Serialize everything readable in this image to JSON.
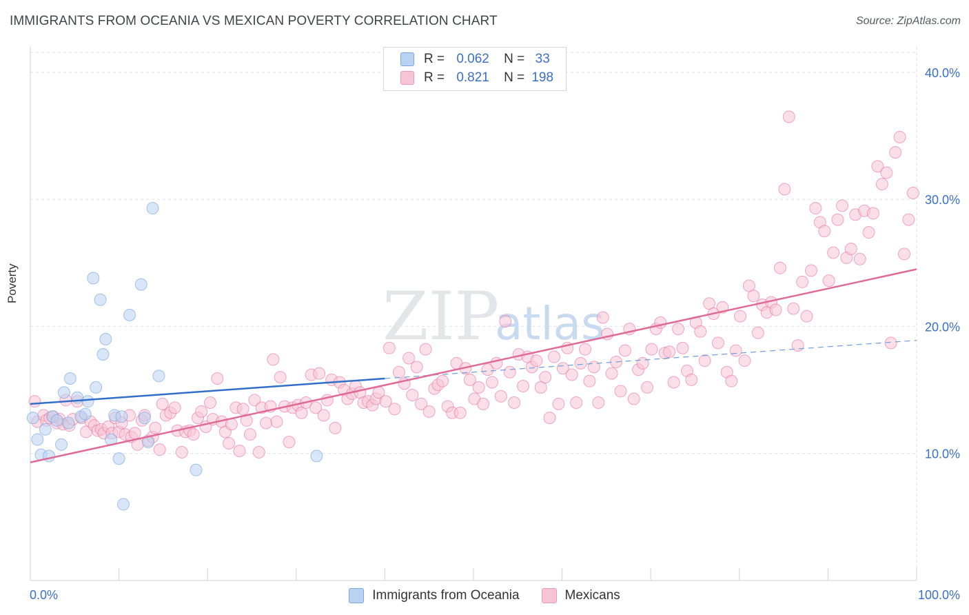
{
  "header": {
    "title": "IMMIGRANTS FROM OCEANIA VS MEXICAN POVERTY CORRELATION CHART",
    "source": "Source: ZipAtlas.com"
  },
  "legend_top": {
    "rows": [
      {
        "r_label": "R =",
        "r_value": "0.062",
        "n_label": "N =",
        "n_value": "33",
        "color": "#a8c8f0"
      },
      {
        "r_label": "R =",
        "r_value": "0.821",
        "n_label": "N =",
        "n_value": "198",
        "color": "#f7b6cb"
      }
    ]
  },
  "chart_data": {
    "type": "scatter",
    "ylabel": "Poverty",
    "xlim": [
      0,
      100
    ],
    "ylim": [
      0,
      42
    ],
    "x_tick_labels": [
      "0.0%",
      "100.0%"
    ],
    "y_ticks": [
      10,
      20,
      30,
      40
    ],
    "y_tick_labels": [
      "10.0%",
      "20.0%",
      "30.0%",
      "40.0%"
    ],
    "grid": true,
    "legend_position": "bottom",
    "series": [
      {
        "name": "Immigrants from Oceania",
        "color": "#6f9fd8",
        "fill": "#b9d2f2",
        "trend": {
          "x0": 0,
          "y0": 13.9,
          "x1": 40,
          "y1": 15.9,
          "ext_x1": 100,
          "ext_y1": 18.9
        },
        "points": [
          [
            0.3,
            12.8
          ],
          [
            0.8,
            11.1
          ],
          [
            1.2,
            9.9
          ],
          [
            1.7,
            11.9
          ],
          [
            2.1,
            9.8
          ],
          [
            2.5,
            12.9
          ],
          [
            3.0,
            12.6
          ],
          [
            3.5,
            10.7
          ],
          [
            3.8,
            14.8
          ],
          [
            4.3,
            12.4
          ],
          [
            4.5,
            15.9
          ],
          [
            5.3,
            14.4
          ],
          [
            5.7,
            12.9
          ],
          [
            6.2,
            13.1
          ],
          [
            6.5,
            14.1
          ],
          [
            7.1,
            23.8
          ],
          [
            7.4,
            15.2
          ],
          [
            7.9,
            22.1
          ],
          [
            8.2,
            17.8
          ],
          [
            8.5,
            19.0
          ],
          [
            9.1,
            11.1
          ],
          [
            9.5,
            13.0
          ],
          [
            10.0,
            9.6
          ],
          [
            10.3,
            12.9
          ],
          [
            10.5,
            6.0
          ],
          [
            11.2,
            20.9
          ],
          [
            12.5,
            23.3
          ],
          [
            12.9,
            12.8
          ],
          [
            13.3,
            10.9
          ],
          [
            13.8,
            29.3
          ],
          [
            14.5,
            16.1
          ],
          [
            18.7,
            8.7
          ],
          [
            32.3,
            9.8
          ]
        ]
      },
      {
        "name": "Mexicans",
        "color": "#e8729d",
        "fill": "#f7c4d5",
        "trend": {
          "x0": 0,
          "y0": 9.3,
          "x1": 100,
          "y1": 24.5
        },
        "points": [
          [
            0.5,
            14.1
          ],
          [
            0.8,
            12.5
          ],
          [
            1.5,
            13.0
          ],
          [
            1.8,
            12.6
          ],
          [
            2.2,
            12.8
          ],
          [
            2.6,
            12.9
          ],
          [
            3.0,
            12.4
          ],
          [
            3.3,
            12.7
          ],
          [
            3.7,
            12.3
          ],
          [
            4.0,
            14.2
          ],
          [
            4.4,
            12.2
          ],
          [
            4.8,
            12.7
          ],
          [
            5.3,
            14.1
          ],
          [
            5.8,
            12.8
          ],
          [
            6.3,
            11.7
          ],
          [
            6.8,
            12.5
          ],
          [
            7.2,
            12.2
          ],
          [
            7.6,
            11.8
          ],
          [
            8.0,
            11.9
          ],
          [
            8.3,
            11.6
          ],
          [
            8.8,
            12.1
          ],
          [
            9.2,
            11.6
          ],
          [
            9.6,
            12.8
          ],
          [
            10.0,
            11.7
          ],
          [
            10.3,
            12.4
          ],
          [
            10.7,
            11.5
          ],
          [
            11.2,
            13.0
          ],
          [
            11.4,
            11.3
          ],
          [
            11.8,
            11.6
          ],
          [
            12.1,
            10.7
          ],
          [
            12.6,
            12.6
          ],
          [
            12.9,
            13.0
          ],
          [
            13.3,
            11.0
          ],
          [
            13.8,
            11.3
          ],
          [
            14.1,
            12.0
          ],
          [
            14.6,
            10.3
          ],
          [
            14.9,
            13.9
          ],
          [
            15.3,
            13.0
          ],
          [
            15.8,
            13.2
          ],
          [
            16.3,
            13.6
          ],
          [
            16.6,
            11.8
          ],
          [
            17.1,
            10.1
          ],
          [
            17.5,
            11.7
          ],
          [
            18.0,
            11.8
          ],
          [
            18.4,
            11.5
          ],
          [
            18.9,
            12.8
          ],
          [
            19.3,
            13.3
          ],
          [
            19.8,
            12.1
          ],
          [
            20.3,
            14.0
          ],
          [
            20.6,
            12.7
          ],
          [
            21.1,
            15.9
          ],
          [
            21.6,
            12.5
          ],
          [
            22.0,
            11.7
          ],
          [
            22.4,
            10.8
          ],
          [
            22.7,
            12.3
          ],
          [
            23.2,
            13.6
          ],
          [
            23.6,
            10.2
          ],
          [
            24.0,
            13.5
          ],
          [
            24.4,
            12.6
          ],
          [
            24.8,
            11.5
          ],
          [
            25.3,
            14.2
          ],
          [
            25.8,
            10.1
          ],
          [
            26.1,
            13.6
          ],
          [
            26.6,
            12.4
          ],
          [
            27.1,
            13.7
          ],
          [
            27.4,
            17.4
          ],
          [
            27.8,
            12.5
          ],
          [
            28.2,
            16.0
          ],
          [
            28.7,
            13.7
          ],
          [
            29.2,
            10.9
          ],
          [
            29.6,
            13.6
          ],
          [
            30.2,
            13.8
          ],
          [
            30.6,
            13.2
          ],
          [
            31.1,
            14.0
          ],
          [
            31.7,
            16.2
          ],
          [
            32.2,
            13.6
          ],
          [
            32.6,
            16.3
          ],
          [
            33.1,
            13.0
          ],
          [
            33.5,
            14.2
          ],
          [
            34.0,
            15.8
          ],
          [
            34.4,
            12.0
          ],
          [
            34.9,
            15.6
          ],
          [
            35.4,
            15.0
          ],
          [
            35.8,
            14.3
          ],
          [
            36.3,
            14.7
          ],
          [
            36.7,
            15.3
          ],
          [
            37.2,
            14.8
          ],
          [
            37.6,
            14.0
          ],
          [
            38.1,
            14.1
          ],
          [
            38.6,
            13.8
          ],
          [
            39.0,
            14.3
          ],
          [
            39.3,
            14.8
          ],
          [
            40.1,
            14.1
          ],
          [
            40.5,
            18.3
          ],
          [
            41.1,
            13.5
          ],
          [
            41.6,
            16.4
          ],
          [
            42.2,
            15.5
          ],
          [
            42.7,
            17.5
          ],
          [
            43.1,
            14.6
          ],
          [
            43.6,
            16.8
          ],
          [
            44.1,
            13.9
          ],
          [
            44.6,
            18.2
          ],
          [
            45.0,
            13.3
          ],
          [
            45.6,
            15.1
          ],
          [
            46.0,
            15.4
          ],
          [
            46.5,
            15.7
          ],
          [
            47.1,
            13.7
          ],
          [
            47.6,
            13.2
          ],
          [
            48.1,
            17.1
          ],
          [
            48.5,
            13.2
          ],
          [
            49.1,
            16.7
          ],
          [
            49.6,
            15.8
          ],
          [
            50.1,
            14.3
          ],
          [
            50.6,
            15.2
          ],
          [
            51.1,
            13.9
          ],
          [
            51.6,
            16.6
          ],
          [
            52.1,
            15.6
          ],
          [
            52.6,
            17.1
          ],
          [
            53.1,
            14.5
          ],
          [
            53.6,
            20.4
          ],
          [
            54.1,
            16.4
          ],
          [
            54.6,
            14.0
          ],
          [
            55.1,
            17.8
          ],
          [
            55.6,
            15.3
          ],
          [
            56.1,
            17.6
          ],
          [
            56.6,
            16.8
          ],
          [
            57.1,
            17.3
          ],
          [
            57.6,
            15.2
          ],
          [
            58.1,
            16.0
          ],
          [
            58.6,
            12.8
          ],
          [
            59.1,
            17.6
          ],
          [
            59.6,
            13.9
          ],
          [
            60.1,
            16.7
          ],
          [
            60.6,
            18.3
          ],
          [
            61.1,
            16.2
          ],
          [
            61.6,
            14.0
          ],
          [
            62.1,
            17.1
          ],
          [
            62.6,
            18.2
          ],
          [
            63.1,
            15.7
          ],
          [
            63.6,
            16.8
          ],
          [
            64.1,
            14.0
          ],
          [
            64.6,
            20.7
          ],
          [
            65.1,
            19.4
          ],
          [
            65.6,
            16.3
          ],
          [
            66.1,
            17.2
          ],
          [
            66.6,
            14.9
          ],
          [
            67.1,
            18.1
          ],
          [
            67.6,
            19.8
          ],
          [
            68.1,
            14.3
          ],
          [
            68.6,
            16.6
          ],
          [
            69.1,
            17.1
          ],
          [
            69.6,
            15.2
          ],
          [
            70.1,
            18.2
          ],
          [
            70.6,
            19.8
          ],
          [
            71.1,
            20.3
          ],
          [
            71.6,
            17.9
          ],
          [
            72.1,
            18.0
          ],
          [
            72.6,
            15.6
          ],
          [
            73.1,
            19.8
          ],
          [
            73.6,
            18.3
          ],
          [
            74.1,
            16.5
          ],
          [
            74.6,
            15.8
          ],
          [
            75.1,
            20.3
          ],
          [
            75.6,
            19.6
          ],
          [
            76.1,
            17.3
          ],
          [
            76.6,
            21.8
          ],
          [
            77.1,
            21.0
          ],
          [
            77.6,
            18.7
          ],
          [
            78.1,
            21.5
          ],
          [
            78.6,
            16.4
          ],
          [
            79.1,
            15.7
          ],
          [
            79.6,
            18.1
          ],
          [
            80.1,
            20.8
          ],
          [
            80.6,
            17.3
          ],
          [
            81.1,
            23.2
          ],
          [
            81.6,
            22.4
          ],
          [
            82.1,
            19.5
          ],
          [
            82.6,
            21.7
          ],
          [
            83.1,
            21.1
          ],
          [
            83.6,
            21.9
          ],
          [
            84.1,
            21.3
          ],
          [
            84.6,
            24.6
          ],
          [
            85.1,
            30.8
          ],
          [
            85.6,
            36.5
          ],
          [
            86.1,
            21.4
          ],
          [
            86.6,
            18.5
          ],
          [
            87.1,
            23.5
          ],
          [
            87.6,
            20.8
          ],
          [
            88.1,
            24.4
          ],
          [
            88.6,
            29.3
          ],
          [
            89.1,
            28.2
          ],
          [
            89.6,
            27.5
          ],
          [
            90.1,
            23.6
          ],
          [
            90.6,
            25.8
          ],
          [
            91.1,
            28.4
          ],
          [
            91.6,
            29.5
          ],
          [
            92.1,
            25.4
          ],
          [
            92.6,
            26.1
          ],
          [
            93.1,
            28.8
          ],
          [
            93.6,
            25.3
          ],
          [
            94.1,
            29.1
          ],
          [
            94.6,
            27.4
          ],
          [
            95.1,
            28.9
          ],
          [
            95.6,
            32.6
          ],
          [
            96.1,
            31.2
          ],
          [
            96.6,
            32.1
          ],
          [
            97.1,
            18.7
          ],
          [
            97.6,
            33.7
          ],
          [
            98.1,
            34.9
          ],
          [
            98.6,
            25.7
          ],
          [
            99.1,
            28.4
          ],
          [
            99.6,
            30.5
          ]
        ]
      }
    ]
  }
}
